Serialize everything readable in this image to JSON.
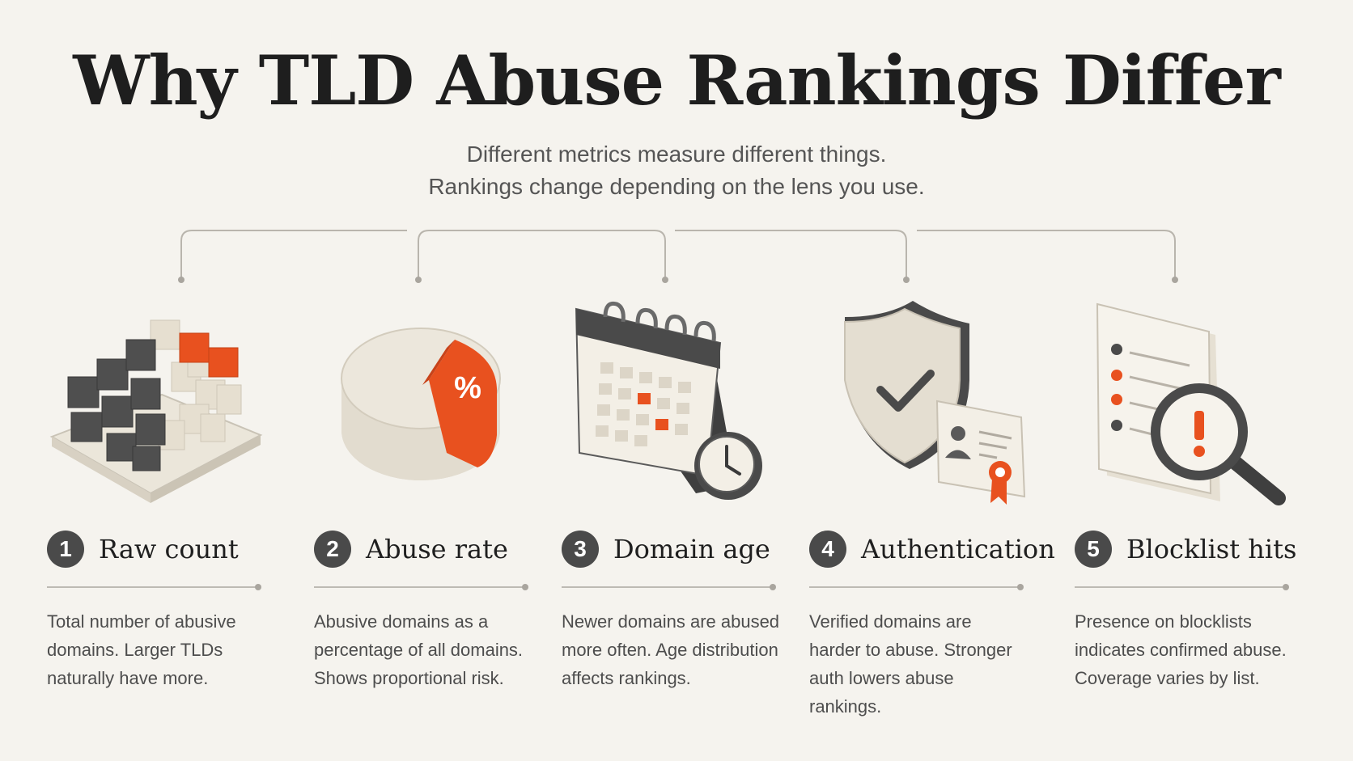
{
  "title": "Why TLD Abuse Rankings Differ",
  "subtitle": [
    "Different metrics measure different things.",
    "Rankings change depending on the lens you use."
  ],
  "metrics": [
    {
      "number": "1",
      "label": "Raw count",
      "icon": "cube-grid-icon",
      "description": "Total number of abusive domains. Larger TLDs naturally have more."
    },
    {
      "number": "2",
      "label": "Abuse rate",
      "icon": "pie-percent-icon",
      "percent_symbol": "%",
      "description": "Abusive domains as a percentage of all domains. Shows proportional risk."
    },
    {
      "number": "3",
      "label": "Domain age",
      "icon": "calendar-clock-icon",
      "description": "Newer domains are abused more often. Age distribution affects rankings."
    },
    {
      "number": "4",
      "label": "Authentication",
      "icon": "shield-check-icon",
      "description": "Verified domains are harder to abuse. Stronger auth lowers abuse rankings."
    },
    {
      "number": "5",
      "label": "Blocklist hits",
      "icon": "blocklist-magnifier-icon",
      "description": "Presence on blocklists indicates confirmed abuse. Coverage varies by list."
    }
  ],
  "colors": {
    "background": "#f5f3ee",
    "accent": "#e8511f",
    "dark": "#4a4a4a",
    "cream": "#e9e4d8"
  }
}
